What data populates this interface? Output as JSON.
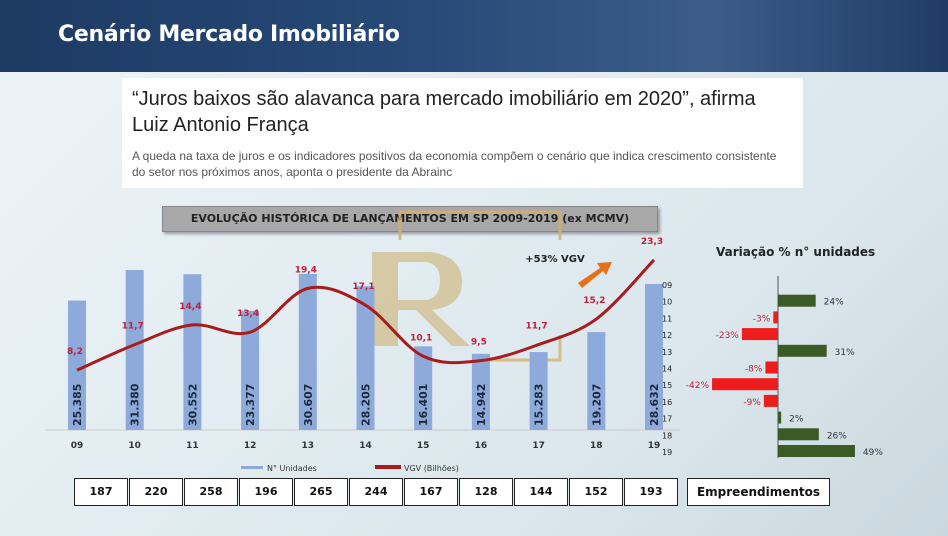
{
  "header": {
    "title": "Cenário Mercado Imobiliário"
  },
  "article": {
    "headline": "“Juros baixos são alavanca para mercado imobiliário em 2020”, afirma Luiz Antonio França",
    "summary": "A queda na taxa de juros e os indicadores positivos da economia compõem o cenário que indica crescimento consistente do setor nos próximos anos, aponta o presidente da Abrainc"
  },
  "chart_data": [
    {
      "type": "bar+line",
      "title": "EVOLUÇÃO HISTÓRICA DE LANÇAMENTOS EM SP 2009-2019 (ex MCMV)",
      "categories": [
        "09",
        "10",
        "11",
        "12",
        "13",
        "14",
        "15",
        "16",
        "17",
        "18",
        "19"
      ],
      "series": [
        {
          "name": "N° Unidades",
          "type": "bar",
          "color": "#8eaadb",
          "values": [
            25385,
            31380,
            30552,
            23377,
            30607,
            28205,
            16401,
            14942,
            15283,
            19207,
            28632
          ],
          "labels": [
            "25.385",
            "31.380",
            "30.552",
            "23.377",
            "30.607",
            "28.205",
            "16.401",
            "14.942",
            "15.283",
            "19.207",
            "28.632"
          ]
        },
        {
          "name": "VGV (Bilhões)",
          "type": "line",
          "color": "#a81c1c",
          "values": [
            8.2,
            11.7,
            14.4,
            13.4,
            19.4,
            17.1,
            10.1,
            9.5,
            11.7,
            15.2,
            23.3
          ],
          "labels": [
            "8,2",
            "11,7",
            "14,4",
            "13,4",
            "19,4",
            "17,1",
            "10,1",
            "9,5",
            "11,7",
            "15,2",
            "23,3"
          ]
        }
      ],
      "annotation": "+53% VGV",
      "legend": "bottom",
      "grid": false
    },
    {
      "type": "bar-horizontal",
      "title": "Variação % n° unidades",
      "categories": [
        "09",
        "10",
        "11",
        "12",
        "13",
        "14",
        "15",
        "16",
        "17",
        "18",
        "19"
      ],
      "values": [
        null,
        24,
        -3,
        -23,
        31,
        -8,
        -42,
        -9,
        2,
        26,
        49
      ],
      "labels": [
        "",
        "24%",
        "-3%",
        "-23%",
        "31%",
        "-8%",
        "-42%",
        "-9%",
        "2%",
        "26%",
        "49%"
      ],
      "colors": {
        "positive": "#3a5a26",
        "negative": "#ee1c1c"
      }
    }
  ],
  "table": {
    "values": [
      "187",
      "220",
      "258",
      "196",
      "265",
      "244",
      "167",
      "128",
      "144",
      "152",
      "193"
    ],
    "label": "Empreendimentos"
  }
}
